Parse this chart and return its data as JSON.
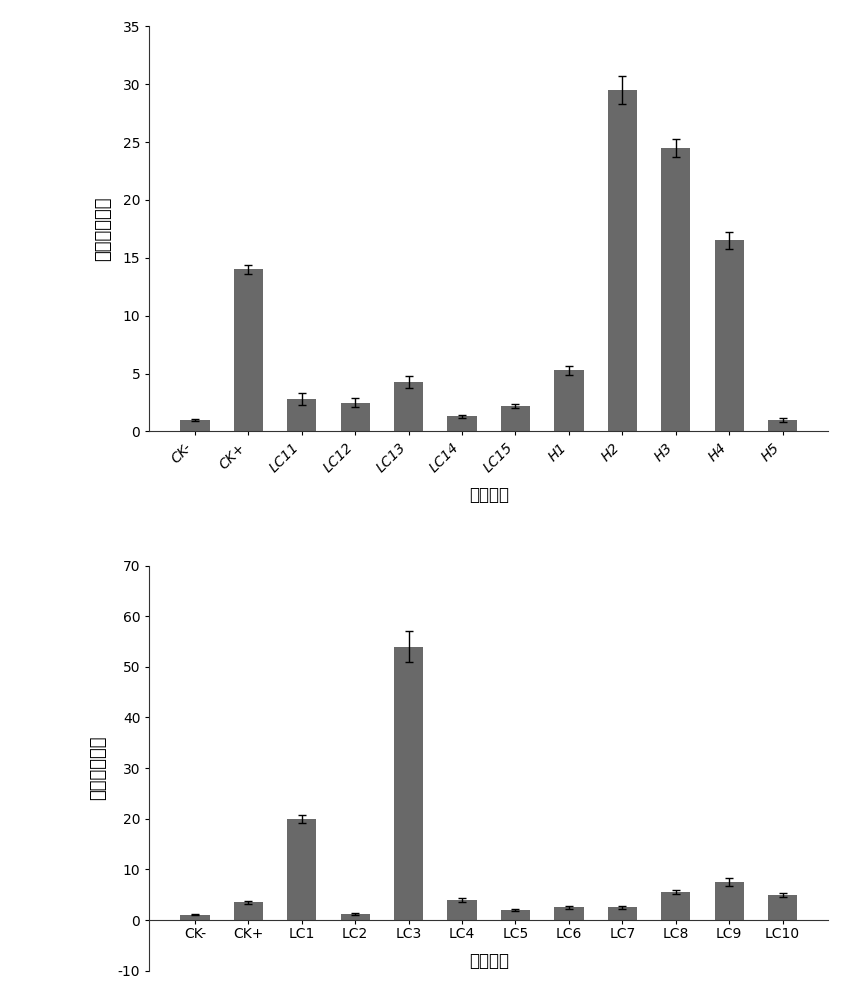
{
  "chart1": {
    "categories": [
      "CK-",
      "CK+",
      "LC11",
      "LC12",
      "LC13",
      "LC14",
      "LC15",
      "H1",
      "H2",
      "H3",
      "H4",
      "H5"
    ],
    "values": [
      1.0,
      14.0,
      2.8,
      2.5,
      4.3,
      1.3,
      2.2,
      5.3,
      29.5,
      24.5,
      16.5,
      1.0
    ],
    "errors": [
      0.1,
      0.4,
      0.5,
      0.4,
      0.5,
      0.15,
      0.2,
      0.4,
      1.2,
      0.8,
      0.7,
      0.15
    ],
    "ylabel": "相对表达水平",
    "xlabel": "样品名称",
    "ylim": [
      0,
      35
    ],
    "yticks": [
      0,
      5,
      10,
      15,
      20,
      25,
      30,
      35
    ],
    "bar_color": "#696969"
  },
  "chart2": {
    "categories": [
      "CK-",
      "CK+",
      "LC1",
      "LC2",
      "LC3",
      "LC4",
      "LC5",
      "LC6",
      "LC7",
      "LC8",
      "LC9",
      "LC10"
    ],
    "values": [
      1.0,
      3.5,
      20.0,
      1.2,
      54.0,
      4.0,
      2.0,
      2.5,
      2.5,
      5.5,
      7.5,
      5.0
    ],
    "errors": [
      0.1,
      0.3,
      0.8,
      0.15,
      3.0,
      0.4,
      0.2,
      0.25,
      0.25,
      0.4,
      0.8,
      0.4
    ],
    "ylabel": "相对表达水平",
    "xlabel": "样品名称",
    "ylim": [
      -10,
      70
    ],
    "yticks": [
      -10,
      0,
      10,
      20,
      30,
      40,
      50,
      60,
      70
    ],
    "bar_color": "#696969"
  },
  "background_color": "#ffffff",
  "font_size_label": 12,
  "font_size_tick": 10,
  "font_size_ylabel": 13
}
